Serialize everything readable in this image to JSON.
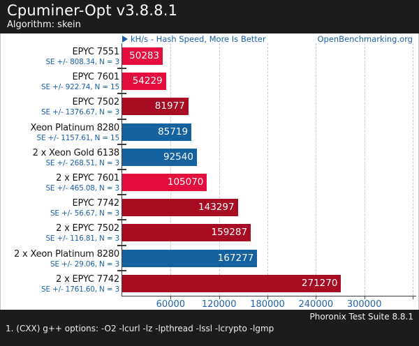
{
  "header": {
    "title": "Cpuminer-Opt v3.8.8.1",
    "subtitle": "Algorithm: skein"
  },
  "meta": {
    "site_label": "OpenBenchmarking.org",
    "play_icon": "play-triangle"
  },
  "chart_data": {
    "type": "bar",
    "orientation": "horizontal",
    "title": "Cpuminer-Opt v3.8.8.1",
    "subtitle": "Algorithm: skein",
    "xlabel": "kH/s - Hash Speed, More Is Better",
    "better": "More Is Better",
    "unit": "kH/s",
    "xlim": [
      0,
      360000
    ],
    "grid": true,
    "x_ticks": [
      {
        "value": 60000,
        "label": "60000"
      },
      {
        "value": 120000,
        "label": "120000"
      },
      {
        "value": 180000,
        "label": "180000"
      },
      {
        "value": 240000,
        "label": "240000"
      },
      {
        "value": 300000,
        "label": "300000"
      },
      {
        "value": 360000,
        "label": ""
      }
    ],
    "rows": [
      {
        "label": "EPYC 7551",
        "se": "SE +/- 808.34, N = 3",
        "value": 50283,
        "color": "bright_red"
      },
      {
        "label": "EPYC 7601",
        "se": "SE +/- 922.74, N = 15",
        "value": 54229,
        "color": "bright_red"
      },
      {
        "label": "EPYC 7502",
        "se": "SE +/- 1376.67, N = 3",
        "value": 81977,
        "color": "dark_red"
      },
      {
        "label": "Xeon Platinum 8280",
        "se": "SE +/- 1157.61, N = 15",
        "value": 85719,
        "color": "blue"
      },
      {
        "label": "2 x Xeon Gold 6138",
        "se": "SE +/- 268.51, N = 3",
        "value": 92540,
        "color": "blue"
      },
      {
        "label": "2 x EPYC 7601",
        "se": "SE +/- 465.08, N = 3",
        "value": 105070,
        "color": "bright_red"
      },
      {
        "label": "EPYC 7742",
        "se": "SE +/- 56.67, N = 3",
        "value": 143297,
        "color": "dark_red"
      },
      {
        "label": "2 x EPYC 7502",
        "se": "SE +/- 116.81, N = 3",
        "value": 159287,
        "color": "dark_red"
      },
      {
        "label": "2 x Xeon Platinum 8280",
        "se": "SE +/- 29.06, N = 3",
        "value": 167277,
        "color": "blue"
      },
      {
        "label": "2 x EPYC 7742",
        "se": "SE +/- 1761.60, N = 3",
        "value": 271270,
        "color": "dark_red"
      }
    ]
  },
  "colors": {
    "bright_red": "#e40f3d",
    "dark_red": "#a80c22",
    "blue": "#15629e",
    "link_blue": "#1c5fa8",
    "header_bg": "#1c1c1c"
  },
  "footer": {
    "right": "Phoronix Test Suite 8.8.1",
    "note": "1. (CXX) g++ options: -O2 -lcurl -lz -lpthread -lssl -lcrypto -lgmp"
  }
}
